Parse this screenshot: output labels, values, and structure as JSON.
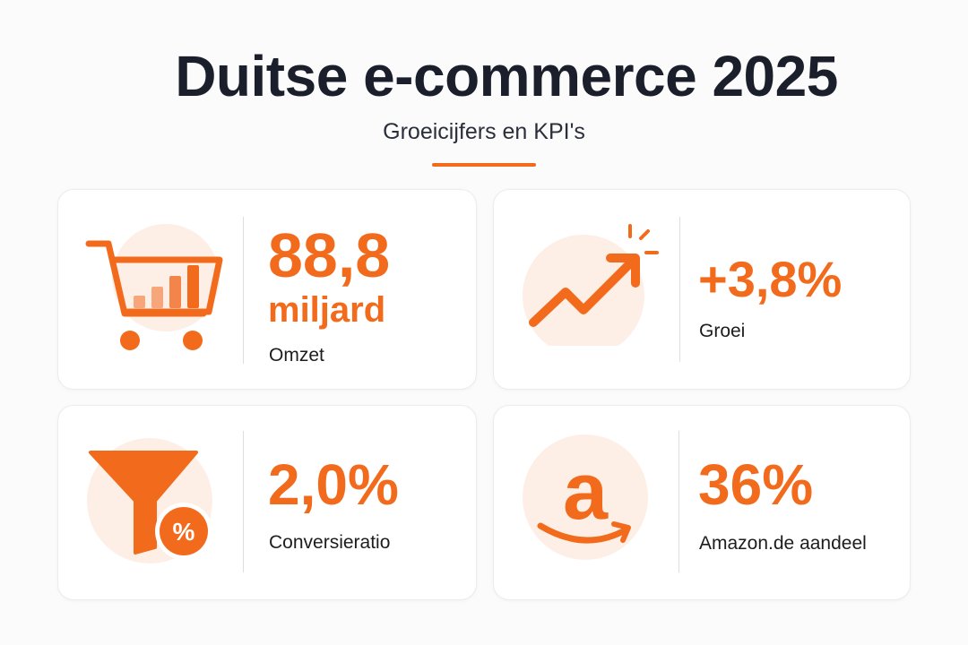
{
  "header": {
    "title": "Duitse e-commerce 2025",
    "subtitle": "Groeicijfers en KPI's"
  },
  "colors": {
    "accent": "#f26b1d",
    "accent_light": "#f7a57a",
    "icon_bg": "#fdeee6",
    "title": "#1a1f2b"
  },
  "cards": [
    {
      "icon": "shopping-cart-icon",
      "value": "88,8",
      "value_line2": "miljard",
      "label": "Omzet"
    },
    {
      "icon": "trending-up-icon",
      "value": "+3,8%",
      "label": "Groei"
    },
    {
      "icon": "funnel-percent-icon",
      "value": "2,0%",
      "label": "Conversieratio"
    },
    {
      "icon": "amazon-logo-icon",
      "value": "36%",
      "label": "Amazon.de aandeel"
    }
  ]
}
